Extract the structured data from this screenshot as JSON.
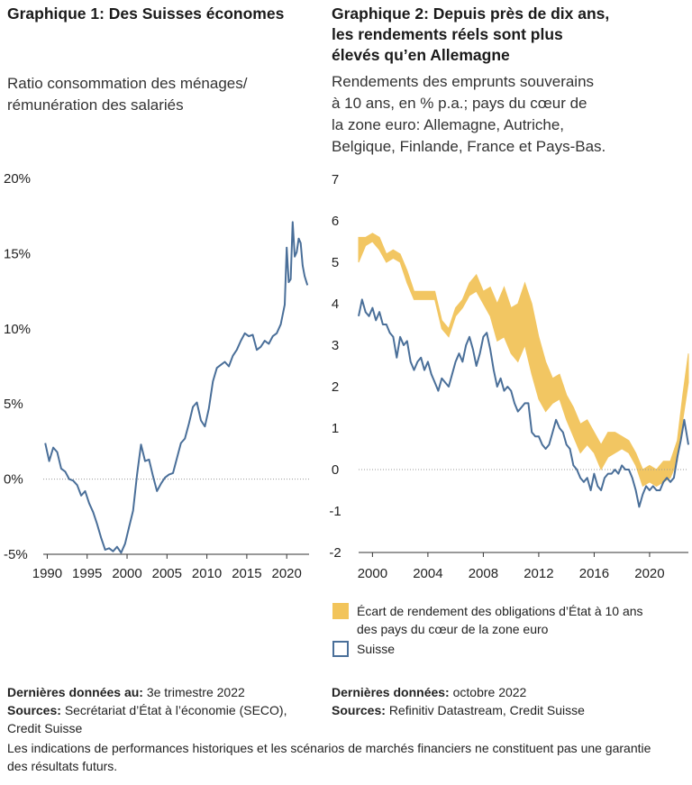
{
  "left": {
    "title": "Graphique 1: Des Suisses économes",
    "subtitle_line1": "Ratio consommation des ménages/",
    "subtitle_line2": "rémunération des salariés"
  },
  "right": {
    "title_line1": "Graphique 2: Depuis près de dix ans,",
    "title_line2": "les rendements réels sont plus",
    "title_line3": "élevés qu’en Allemagne",
    "subtitle_line1": "Rendements des emprunts souverains",
    "subtitle_line2": "à 10 ans, en % p.a.; pays du cœur de",
    "subtitle_line3": "la zone euro: Allemagne, Autriche,",
    "subtitle_line4": "Belgique, Finlande, France et Pays-Bas."
  },
  "legend": {
    "spread_line1": "Écart de rendement des obligations d’État à 10 ans",
    "spread_line2": "des pays du cœur de la zone euro",
    "swiss": "Suisse"
  },
  "footer": {
    "left_last_label": "Dernières données au:",
    "left_last_value": "3e trimestre 2022",
    "left_sources_label": "Sources:",
    "left_sources_value": "Secrétariat d’État à l’économie (SECO),",
    "left_sources_value2": "Credit Suisse",
    "right_last_label": "Dernières données:",
    "right_last_value": "octobre 2022",
    "right_sources_label": "Sources:",
    "right_sources_value": "Refinitiv Datastream, Credit Suisse",
    "disclaimer_line1": "Les indications de performances historiques et les scénarios de marchés financiers ne constituent pas une garantie",
    "disclaimer_line2": "des résultats futurs."
  },
  "colors": {
    "swiss_line": "#4a6f99",
    "spread_fill": "#f2c45a",
    "axis": "#333333",
    "zero_line": "#999999"
  },
  "chart_data": [
    {
      "type": "line",
      "title": "Graphique 1: Des Suisses économes",
      "ylabel": "Ratio consommation des ménages/rémunération des salariés",
      "y_unit": "%",
      "xlim": [
        1989.5,
        2022.8
      ],
      "ylim": [
        -5,
        20
      ],
      "x_ticks": [
        1990,
        1995,
        2000,
        2005,
        2010,
        2015,
        2020
      ],
      "y_ticks": [
        -5,
        0,
        5,
        10,
        15,
        20
      ],
      "y_tick_labels": [
        "-5%",
        "0%",
        "5%",
        "10%",
        "15%",
        "20%"
      ],
      "series": [
        {
          "x": [
            1989.75,
            1990.25,
            1990.75,
            1991.25,
            1991.75,
            1992.25,
            1992.75,
            1993.25,
            1993.75,
            1994.25,
            1994.75,
            1995.25,
            1995.75,
            1996.25,
            1996.75,
            1997.25,
            1997.75,
            1998.25,
            1998.75,
            1999.25,
            1999.75,
            2000.25,
            2000.75,
            2001.25,
            2001.75,
            2002.25,
            2002.75,
            2003.25,
            2003.75,
            2004.25,
            2004.75,
            2005.25,
            2005.75,
            2006.25,
            2006.75,
            2007.25,
            2007.75,
            2008.25,
            2008.75,
            2009.25,
            2009.75,
            2010.25,
            2010.75,
            2011.25,
            2011.75,
            2012.25,
            2012.75,
            2013.25,
            2013.75,
            2014.25,
            2014.75,
            2015.25,
            2015.75,
            2016.25,
            2016.75,
            2017.25,
            2017.75,
            2018.25,
            2018.75,
            2019.25,
            2019.75,
            2020.0,
            2020.25,
            2020.5,
            2020.75,
            2021.0,
            2021.25,
            2021.5,
            2021.75,
            2022.0,
            2022.25,
            2022.6
          ],
          "values": [
            2.4,
            1.2,
            2.1,
            1.8,
            0.7,
            0.5,
            0.0,
            -0.1,
            -0.4,
            -1.1,
            -0.8,
            -1.6,
            -2.2,
            -3.0,
            -3.9,
            -4.7,
            -4.6,
            -4.8,
            -4.5,
            -4.9,
            -4.3,
            -3.2,
            -2.1,
            0.3,
            2.3,
            1.2,
            1.3,
            0.2,
            -0.8,
            -0.3,
            0.1,
            0.3,
            0.4,
            1.4,
            2.4,
            2.7,
            3.7,
            4.8,
            5.1,
            3.9,
            3.5,
            4.7,
            6.5,
            7.4,
            7.6,
            7.8,
            7.5,
            8.2,
            8.6,
            9.2,
            9.7,
            9.5,
            9.6,
            8.6,
            8.8,
            9.2,
            9.0,
            9.5,
            9.7,
            10.3,
            11.6,
            15.4,
            13.1,
            13.3,
            17.1,
            14.8,
            15.1,
            16.0,
            15.7,
            14.2,
            13.5,
            12.9
          ]
        }
      ]
    },
    {
      "type": "area",
      "title": "Graphique 2: Depuis près de dix ans, les rendements réels sont plus élevés qu’en Allemagne",
      "ylabel": "Rendements des emprunts souverains à 10 ans, en % p.a.",
      "xlim": [
        1999.0,
        2022.8
      ],
      "ylim": [
        -2,
        7
      ],
      "x_ticks": [
        2000,
        2004,
        2008,
        2012,
        2016,
        2020
      ],
      "y_ticks": [
        -2,
        -1,
        0,
        1,
        2,
        3,
        4,
        5,
        6,
        7
      ],
      "series": [
        {
          "name": "Écart de rendement des obligations d’État à 10 ans des pays du cœur de la zone euro",
          "x": [
            1999.0,
            1999.5,
            2000.0,
            2000.5,
            2001.0,
            2001.5,
            2002.0,
            2002.5,
            2003.0,
            2003.5,
            2004.0,
            2004.5,
            2005.0,
            2005.5,
            2006.0,
            2006.5,
            2007.0,
            2007.5,
            2008.0,
            2008.5,
            2009.0,
            2009.5,
            2010.0,
            2010.5,
            2011.0,
            2011.5,
            2012.0,
            2012.5,
            2013.0,
            2013.5,
            2014.0,
            2014.5,
            2015.0,
            2015.5,
            2016.0,
            2016.5,
            2017.0,
            2017.5,
            2018.0,
            2018.5,
            2019.0,
            2019.5,
            2020.0,
            2020.5,
            2021.0,
            2021.5,
            2022.0,
            2022.4,
            2022.8
          ],
          "low": [
            5.0,
            5.4,
            5.5,
            5.3,
            5.0,
            5.1,
            5.0,
            4.5,
            4.1,
            4.1,
            4.1,
            4.1,
            3.4,
            3.2,
            3.7,
            3.9,
            4.2,
            4.3,
            4.0,
            3.7,
            3.1,
            3.2,
            2.8,
            2.6,
            3.0,
            2.3,
            1.7,
            1.4,
            1.6,
            1.7,
            1.2,
            0.8,
            0.4,
            0.6,
            0.4,
            0.0,
            0.3,
            0.4,
            0.5,
            0.4,
            0.1,
            -0.4,
            -0.3,
            -0.4,
            -0.3,
            -0.2,
            0.2,
            1.2,
            2.1
          ],
          "high": [
            5.6,
            5.6,
            5.7,
            5.6,
            5.2,
            5.3,
            5.2,
            4.8,
            4.3,
            4.3,
            4.3,
            4.3,
            3.6,
            3.4,
            3.9,
            4.1,
            4.5,
            4.7,
            4.3,
            4.4,
            4.0,
            4.4,
            3.9,
            4.0,
            4.5,
            4.0,
            3.2,
            2.6,
            2.2,
            2.3,
            1.8,
            1.5,
            1.1,
            1.2,
            0.9,
            0.6,
            0.9,
            0.9,
            0.8,
            0.7,
            0.4,
            0.0,
            0.1,
            0.0,
            0.2,
            0.2,
            0.7,
            1.8,
            2.8
          ]
        },
        {
          "name": "Suisse",
          "x": [
            1999.0,
            1999.25,
            1999.5,
            1999.75,
            2000.0,
            2000.25,
            2000.5,
            2000.75,
            2001.0,
            2001.25,
            2001.5,
            2001.75,
            2002.0,
            2002.25,
            2002.5,
            2002.75,
            2003.0,
            2003.25,
            2003.5,
            2003.75,
            2004.0,
            2004.25,
            2004.5,
            2004.75,
            2005.0,
            2005.25,
            2005.5,
            2005.75,
            2006.0,
            2006.25,
            2006.5,
            2006.75,
            2007.0,
            2007.25,
            2007.5,
            2007.75,
            2008.0,
            2008.25,
            2008.5,
            2008.75,
            2009.0,
            2009.25,
            2009.5,
            2009.75,
            2010.0,
            2010.25,
            2010.5,
            2010.75,
            2011.0,
            2011.25,
            2011.5,
            2011.75,
            2012.0,
            2012.25,
            2012.5,
            2012.75,
            2013.0,
            2013.25,
            2013.5,
            2013.75,
            2014.0,
            2014.25,
            2014.5,
            2014.75,
            2015.0,
            2015.25,
            2015.5,
            2015.75,
            2016.0,
            2016.25,
            2016.5,
            2016.75,
            2017.0,
            2017.25,
            2017.5,
            2017.75,
            2018.0,
            2018.25,
            2018.5,
            2018.75,
            2019.0,
            2019.25,
            2019.5,
            2019.75,
            2020.0,
            2020.25,
            2020.5,
            2020.75,
            2021.0,
            2021.25,
            2021.5,
            2021.75,
            2022.0,
            2022.25,
            2022.5,
            2022.8
          ],
          "values": [
            3.7,
            4.1,
            3.8,
            3.7,
            3.9,
            3.6,
            3.8,
            3.5,
            3.5,
            3.3,
            3.2,
            2.7,
            3.2,
            3.0,
            3.1,
            2.6,
            2.4,
            2.6,
            2.7,
            2.4,
            2.6,
            2.3,
            2.1,
            1.9,
            2.2,
            2.1,
            2.0,
            2.3,
            2.6,
            2.8,
            2.6,
            3.0,
            3.2,
            2.9,
            2.5,
            2.8,
            3.2,
            3.3,
            2.9,
            2.4,
            2.0,
            2.2,
            1.9,
            2.0,
            1.9,
            1.6,
            1.4,
            1.5,
            1.6,
            1.6,
            0.9,
            0.8,
            0.8,
            0.6,
            0.5,
            0.6,
            0.9,
            1.2,
            1.0,
            0.9,
            0.6,
            0.5,
            0.1,
            0.0,
            -0.2,
            -0.3,
            -0.2,
            -0.5,
            -0.1,
            -0.4,
            -0.5,
            -0.2,
            -0.1,
            -0.1,
            0.0,
            -0.1,
            0.1,
            0.0,
            0.0,
            -0.2,
            -0.5,
            -0.9,
            -0.6,
            -0.4,
            -0.5,
            -0.4,
            -0.5,
            -0.5,
            -0.3,
            -0.2,
            -0.3,
            -0.2,
            0.3,
            0.7,
            1.2,
            0.6
          ]
        }
      ]
    }
  ]
}
